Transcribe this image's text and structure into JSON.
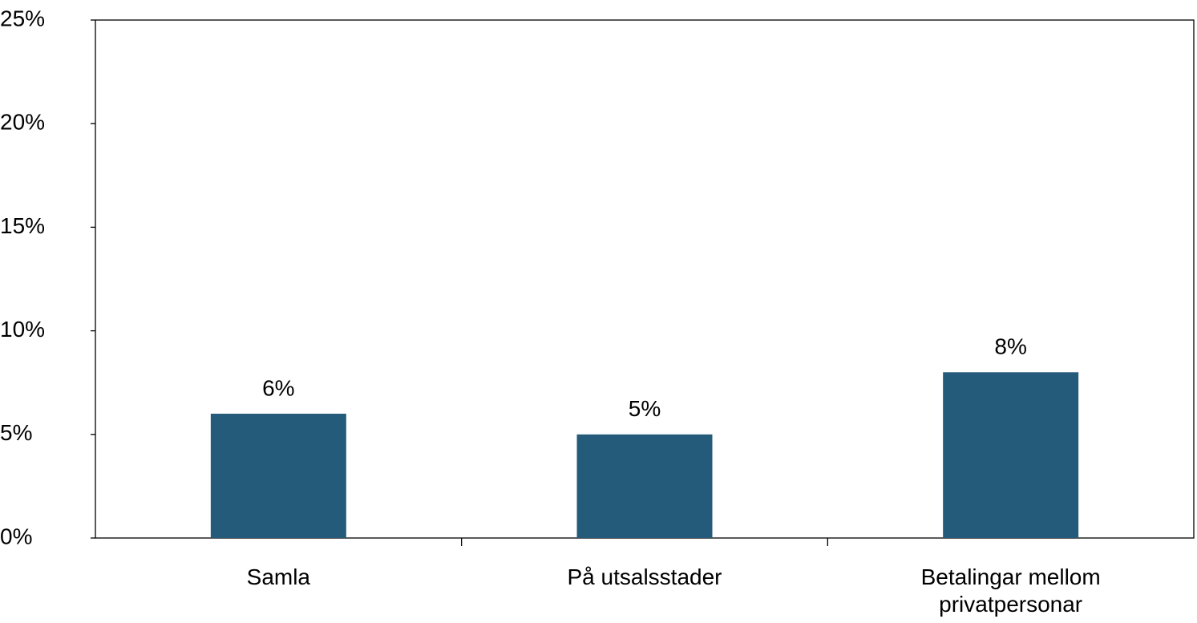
{
  "chart_data": {
    "type": "bar",
    "categories": [
      "Samla",
      "På utsalsstader",
      "Betalingar mellom privatpersonar"
    ],
    "values": [
      6,
      5,
      8
    ],
    "value_labels": [
      "6%",
      "5%",
      "8%"
    ],
    "color": "#245b7a",
    "ylim": [
      0,
      25
    ],
    "yticks": [
      {
        "value": 0,
        "label": "0%"
      },
      {
        "value": 5,
        "label": "5%"
      },
      {
        "value": 10,
        "label": "10%"
      },
      {
        "value": 15,
        "label": "15%"
      },
      {
        "value": 20,
        "label": "20%"
      },
      {
        "value": 25,
        "label": "25%"
      }
    ],
    "grid": false
  }
}
